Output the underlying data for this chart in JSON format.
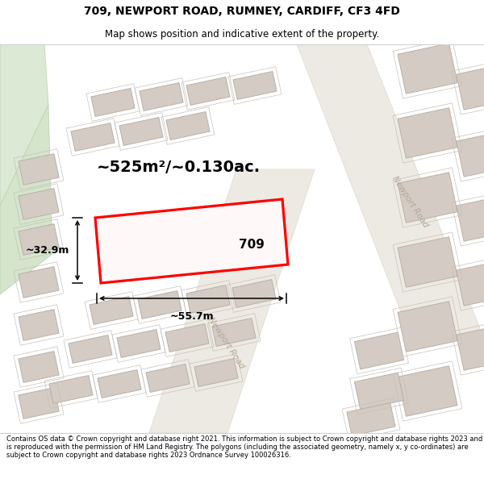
{
  "title_line1": "709, NEWPORT ROAD, RUMNEY, CARDIFF, CF3 4FD",
  "title_line2": "Map shows position and indicative extent of the property.",
  "footer_text": "Contains OS data © Crown copyright and database right 2021. This information is subject to Crown copyright and database rights 2023 and is reproduced with the permission of HM Land Registry. The polygons (including the associated geometry, namely x, y co-ordinates) are subject to Crown copyright and database rights 2023 Ordnance Survey 100026316.",
  "area_label": "~525m²/~0.130ac.",
  "width_label": "~55.7m",
  "height_label": "~32.9m",
  "plot_number": "709",
  "map_bg": "#f7f5f2",
  "building_fill": "#d4ccc4",
  "building_edge": "#b8b0a8",
  "green_fill": "#dce9d5",
  "green_edge": "#c0d4b8",
  "road_fill": "#edeae4",
  "highlight_fill": "#fff8f8",
  "highlight_edge": "#ff0000",
  "road_text_color": "#b0a898",
  "title_fontsize": 10,
  "subtitle_fontsize": 8.5,
  "footer_fontsize": 6.0
}
